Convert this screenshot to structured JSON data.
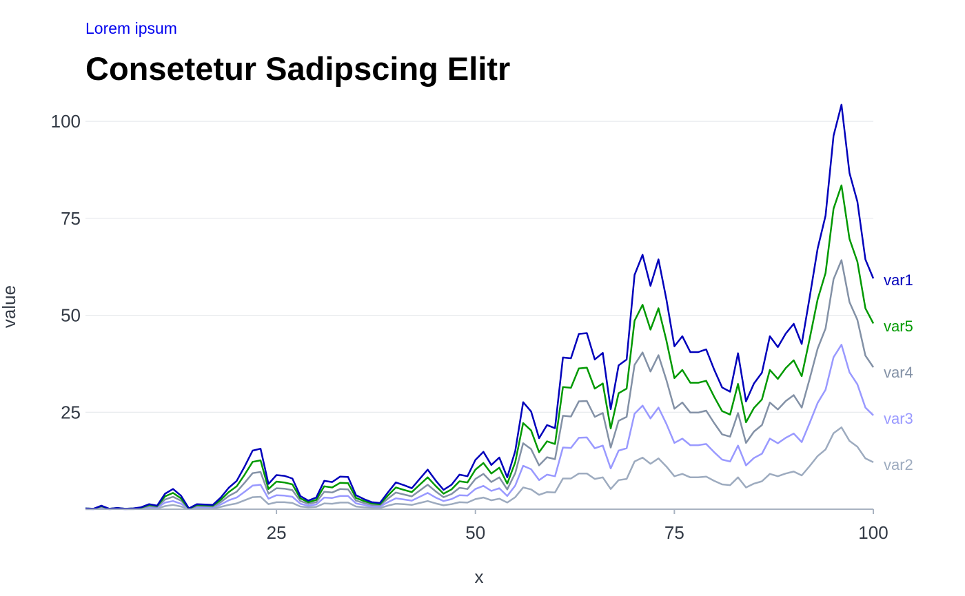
{
  "subtitle": "Lorem ipsum",
  "title": "Consetetur Sadipscing Elitr",
  "chart_data": {
    "type": "line",
    "xlabel": "x",
    "ylabel": "value",
    "xlim": [
      1,
      100
    ],
    "ylim": [
      0,
      105
    ],
    "x_ticks": [
      25,
      50,
      75,
      100
    ],
    "y_ticks": [
      25,
      50,
      75,
      100
    ],
    "grid": "horizontal",
    "legend": "direct labels at right end of lines",
    "x": [
      1,
      2,
      3,
      4,
      5,
      6,
      7,
      8,
      9,
      10,
      11,
      12,
      13,
      14,
      15,
      16,
      17,
      18,
      19,
      20,
      21,
      22,
      23,
      24,
      25,
      26,
      27,
      28,
      29,
      30,
      31,
      32,
      33,
      34,
      35,
      36,
      37,
      38,
      39,
      40,
      41,
      42,
      43,
      44,
      45,
      46,
      47,
      48,
      49,
      50,
      51,
      52,
      53,
      54,
      55,
      56,
      57,
      58,
      59,
      60,
      61,
      62,
      63,
      64,
      65,
      66,
      67,
      68,
      69,
      70,
      71,
      72,
      73,
      74,
      75,
      76,
      77,
      78,
      79,
      80,
      81,
      82,
      83,
      84,
      85,
      86,
      87,
      88,
      89,
      90,
      91,
      92,
      93,
      94,
      95,
      96,
      97,
      98,
      99,
      100
    ],
    "series": [
      {
        "name": "var1",
        "color": "#0000bb",
        "values": [
          0.2,
          0.1,
          0.9,
          0.1,
          0.3,
          0.1,
          0.2,
          0.5,
          1.3,
          0.9,
          4,
          5.2,
          3.5,
          0.2,
          1.3,
          1.2,
          1.1,
          3,
          5.5,
          7.3,
          11,
          15.1,
          15.6,
          6.5,
          8.8,
          8.6,
          7.9,
          3.4,
          2.2,
          3,
          7.3,
          7,
          8.4,
          8.3,
          3.6,
          2.6,
          1.8,
          1.6,
          4.3,
          6.9,
          6.2,
          5.4,
          7.8,
          10.2,
          7.4,
          5,
          6.3,
          8.9,
          8.5,
          12.7,
          14.8,
          11.4,
          13.3,
          8.2,
          15,
          27.6,
          25.2,
          18.3,
          21.7,
          20.9,
          39.1,
          38.9,
          45.2,
          45.4,
          38.6,
          40.3,
          25.8,
          37.1,
          38.6,
          60.4,
          65.6,
          57.6,
          64.4,
          54.1,
          42,
          44.6,
          40.5,
          40.5,
          41.2,
          36,
          31.4,
          30.3,
          40.2,
          27.8,
          32.4,
          35.2,
          44.6,
          41.8,
          45.3,
          47.8,
          42.6,
          54.6,
          67.2,
          75.7,
          96.3,
          104.3,
          86.7,
          79.3,
          64.4,
          59.5
        ]
      },
      {
        "name": "var5",
        "color": "#009900",
        "values": [
          0.2,
          0.1,
          0.8,
          0.1,
          0.3,
          0.1,
          0.2,
          0.4,
          1.1,
          0.8,
          3.3,
          4.2,
          2.8,
          0.1,
          1.1,
          1,
          0.9,
          2.4,
          4.4,
          5.9,
          8.9,
          12.2,
          12.6,
          5.2,
          7.1,
          6.9,
          6.4,
          2.8,
          1.8,
          2.4,
          5.9,
          5.6,
          6.8,
          6.7,
          2.9,
          2.1,
          1.5,
          1.3,
          3.5,
          5.6,
          5,
          4.4,
          6.3,
          8.2,
          6,
          4,
          5.1,
          7.2,
          6.9,
          10.2,
          11.9,
          9.2,
          10.7,
          6.6,
          12.1,
          22.2,
          20.3,
          14.7,
          17.5,
          16.8,
          31.5,
          31.3,
          36.3,
          36.5,
          31.1,
          32.4,
          20.8,
          29.9,
          31.1,
          48.6,
          52.7,
          46.3,
          51.8,
          43.5,
          33.8,
          35.9,
          32.6,
          32.6,
          33.1,
          29,
          25.3,
          24.4,
          32.3,
          22.4,
          26.1,
          28.3,
          35.9,
          33.6,
          36.4,
          38.4,
          34.3,
          43.9,
          54.1,
          60.9,
          77.5,
          83.5,
          69.7,
          63.8,
          51.8,
          47.9
        ]
      },
      {
        "name": "var4",
        "color": "#8391a6",
        "values": [
          0.1,
          0.1,
          0.6,
          0.1,
          0.2,
          0.1,
          0.1,
          0.3,
          0.8,
          0.6,
          2.5,
          3.2,
          2.2,
          0.1,
          0.8,
          0.8,
          0.7,
          1.8,
          3.4,
          4.5,
          6.8,
          9.3,
          9.6,
          4,
          5.4,
          5.3,
          4.9,
          2.1,
          1.4,
          1.8,
          4.5,
          4.3,
          5.2,
          5.1,
          2.2,
          1.6,
          1.1,
          1,
          2.7,
          4.3,
          3.8,
          3.3,
          4.8,
          6.3,
          4.6,
          3.1,
          3.9,
          5.5,
          5.2,
          7.8,
          9.1,
          7,
          8.2,
          5.1,
          9.3,
          17,
          15.5,
          11.3,
          13.4,
          12.9,
          24.1,
          23.9,
          27.8,
          27.9,
          23.8,
          24.8,
          15.9,
          22.8,
          23.8,
          37.2,
          40.4,
          35.5,
          39.7,
          33.3,
          25.9,
          27.5,
          24.9,
          24.9,
          25.4,
          22.2,
          19.3,
          18.7,
          24.8,
          17.1,
          20,
          21.7,
          27.5,
          25.7,
          27.9,
          29.4,
          26.2,
          33.6,
          41.4,
          46.6,
          59.3,
          64.2,
          53.4,
          48.8,
          39.6,
          36.6
        ]
      },
      {
        "name": "var3",
        "color": "#9999ff",
        "values": [
          0.1,
          0,
          0.4,
          0,
          0.1,
          0,
          0.1,
          0.2,
          0.5,
          0.4,
          1.7,
          2.1,
          1.4,
          0.1,
          0.5,
          0.5,
          0.5,
          1.2,
          2.3,
          3,
          4.5,
          6.1,
          6.3,
          2.7,
          3.6,
          3.5,
          3.2,
          1.4,
          0.9,
          1.2,
          3,
          2.9,
          3.4,
          3.4,
          1.5,
          1.1,
          0.7,
          0.7,
          1.8,
          2.8,
          2.5,
          2.2,
          3.2,
          4.2,
          3,
          2.1,
          2.6,
          3.6,
          3.5,
          5.2,
          6,
          4.7,
          5.4,
          3.4,
          6.1,
          11.2,
          10.3,
          7.5,
          8.9,
          8.5,
          15.9,
          15.8,
          18.4,
          18.5,
          15.7,
          16.4,
          10.5,
          15.1,
          15.7,
          24.6,
          26.7,
          23.4,
          26.2,
          22,
          17.1,
          18.2,
          16.5,
          16.5,
          16.8,
          14.7,
          12.8,
          12.3,
          16.4,
          11.3,
          13.2,
          14.3,
          18.2,
          17,
          18.4,
          19.5,
          17.3,
          22.2,
          27.4,
          30.8,
          39.2,
          42.4,
          35.3,
          32.2,
          26.2,
          24.2
        ]
      },
      {
        "name": "var2",
        "color": "#9dabbf",
        "values": [
          0,
          0,
          0.2,
          0,
          0.1,
          0,
          0,
          0.1,
          0.3,
          0.2,
          0.8,
          1.1,
          0.7,
          0,
          0.3,
          0.2,
          0.2,
          0.6,
          1.1,
          1.5,
          2.3,
          3.1,
          3.2,
          1.3,
          1.8,
          1.8,
          1.6,
          0.7,
          0.5,
          0.6,
          1.5,
          1.4,
          1.7,
          1.7,
          0.7,
          0.5,
          0.4,
          0.3,
          0.9,
          1.4,
          1.3,
          1.1,
          1.6,
          2.1,
          1.5,
          1,
          1.3,
          1.8,
          1.7,
          2.6,
          3,
          2.3,
          2.7,
          1.7,
          3.1,
          5.6,
          5.1,
          3.7,
          4.4,
          4.3,
          7.9,
          7.9,
          9.2,
          9.2,
          7.8,
          8.2,
          5.2,
          7.5,
          7.8,
          12.3,
          13.3,
          11.7,
          13.1,
          11,
          8.5,
          9.1,
          8.2,
          8.2,
          8.4,
          7.3,
          6.4,
          6.2,
          8.2,
          5.6,
          6.6,
          7.2,
          9.1,
          8.5,
          9.2,
          9.7,
          8.7,
          11.1,
          13.7,
          15.4,
          19.6,
          21.1,
          17.6,
          16.1,
          13.1,
          12.1
        ]
      }
    ]
  }
}
